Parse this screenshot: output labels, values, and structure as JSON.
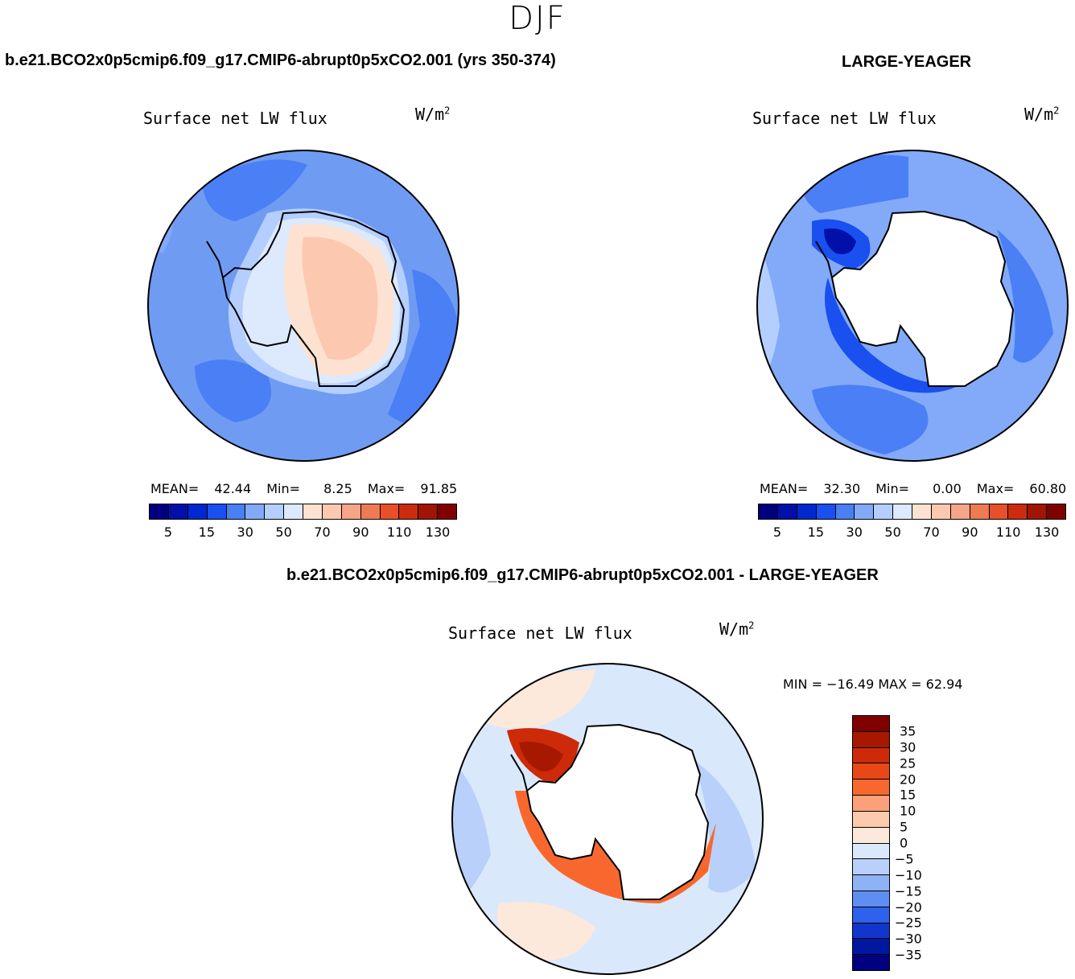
{
  "page": {
    "season": "DJF",
    "case_title": "b.e21.BCO2x0p5cmip6.f09_g17.CMIP6-abrupt0p5xCO2.001 (yrs 350-374)",
    "control_title": "LARGE-YEAGER",
    "diff_title": "b.e21.BCO2x0p5cmip6.f09_g17.CMIP6-abrupt0p5xCO2.001 - LARGE-YEAGER"
  },
  "panels": {
    "case": {
      "variable": "Surface net LW flux",
      "unit_base": "W/m",
      "unit_exp": "2",
      "mean_label": "MEAN=",
      "mean_value": "42.44",
      "min_label": "Min=",
      "min_value": "8.25",
      "max_label": "Max=",
      "max_value": "91.85"
    },
    "control": {
      "variable": "Surface net LW flux",
      "unit_base": "W/m",
      "unit_exp": "2",
      "mean_label": "MEAN=",
      "mean_value": "32.30",
      "min_label": "Min=",
      "min_value": "0.00",
      "max_label": "Max=",
      "max_value": "60.80"
    },
    "diff": {
      "variable": "Surface net LW flux",
      "unit_base": "W/m",
      "unit_exp": "2",
      "minmax_text": "MIN = −16.49  MAX =   62.94"
    }
  },
  "chart_data": [
    {
      "type": "heatmap",
      "title": "Surface net LW flux",
      "case": "b.e21.BCO2x0p5cmip6.f09_g17.CMIP6-abrupt0p5xCO2.001 (yrs 350-374)",
      "units": "W/m2",
      "projection": "south polar stereographic",
      "stats": {
        "mean": 42.44,
        "min": 8.25,
        "max": 91.85
      },
      "colorbar_ticks": [
        "5",
        "15",
        "30",
        "50",
        "70",
        "90",
        "110",
        "130"
      ],
      "colors": [
        "#00007f",
        "#0010a8",
        "#0028d0",
        "#1a50f0",
        "#4a7ff5",
        "#82aaf8",
        "#b4ceff",
        "#dde9fd",
        "#fde2d2",
        "#fcc8b0",
        "#f6a588",
        "#f07a52",
        "#e8502a",
        "#cc2c0e",
        "#a01506",
        "#800000"
      ]
    },
    {
      "type": "heatmap",
      "title": "Surface net LW flux",
      "case": "LARGE-YEAGER",
      "units": "W/m2",
      "projection": "south polar stereographic",
      "stats": {
        "mean": 32.3,
        "min": 0.0,
        "max": 60.8
      },
      "colorbar_ticks": [
        "5",
        "15",
        "30",
        "50",
        "70",
        "90",
        "110",
        "130"
      ],
      "colors": [
        "#00007f",
        "#0010a8",
        "#0028d0",
        "#1a50f0",
        "#4a7ff5",
        "#82aaf8",
        "#b4ceff",
        "#dde9fd",
        "#fde2d2",
        "#fcc8b0",
        "#f6a588",
        "#f07a52",
        "#e8502a",
        "#cc2c0e",
        "#a01506",
        "#800000"
      ]
    },
    {
      "type": "heatmap",
      "title": "Surface net LW flux",
      "case": "b.e21.BCO2x0p5cmip6.f09_g17.CMIP6-abrupt0p5xCO2.001 - LARGE-YEAGER",
      "units": "W/m2",
      "projection": "south polar stereographic",
      "stats": {
        "min": -16.49,
        "max": 62.94
      },
      "colorbar_ticks": [
        "35",
        "30",
        "25",
        "20",
        "15",
        "10",
        "5",
        "0",
        "−5",
        "−10",
        "−15",
        "−20",
        "−25",
        "−30",
        "−35"
      ],
      "colors": [
        "#800000",
        "#a81800",
        "#cc2a08",
        "#e84818",
        "#f8682e",
        "#fba07a",
        "#fccaac",
        "#fde8dc",
        "#dae8fc",
        "#b8d0fa",
        "#8eb2f6",
        "#5e8ef2",
        "#2e62ec",
        "#1236cc",
        "#0018a0",
        "#000080"
      ]
    }
  ]
}
